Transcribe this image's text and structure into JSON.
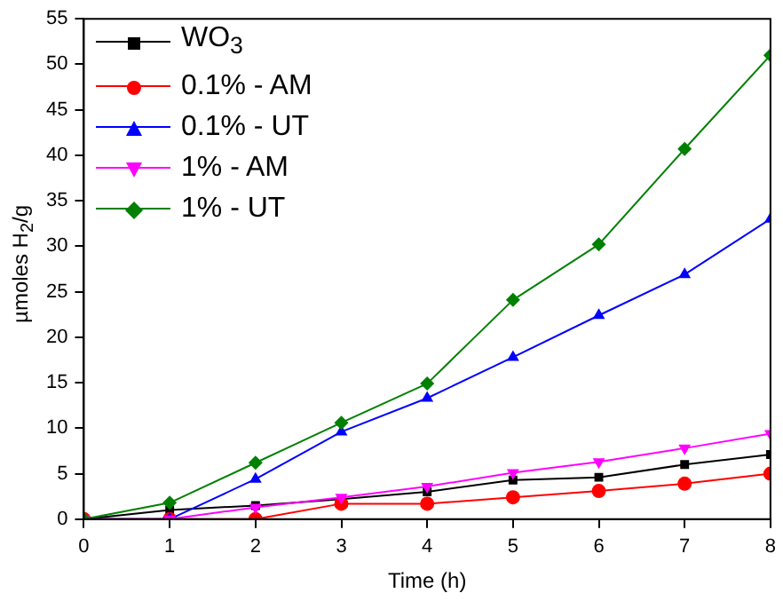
{
  "chart_data": {
    "type": "line",
    "xlabel": "Time (h)",
    "ylabel": "µmoles H$_{2}$/g",
    "x": [
      0,
      1,
      2,
      3,
      4,
      5,
      6,
      7,
      8
    ],
    "xlim": [
      0,
      8
    ],
    "xticks": [
      0,
      1,
      2,
      3,
      4,
      5,
      6,
      7,
      8
    ],
    "ylim": [
      0,
      55
    ],
    "yticks": [
      0,
      5,
      10,
      15,
      20,
      25,
      30,
      35,
      40,
      45,
      50,
      55
    ],
    "grid": false,
    "legend": "top left",
    "line_style": "solid",
    "series": [
      {
        "name": "WO$_{3}$",
        "color": "#000000",
        "marker": "square",
        "values": [
          0,
          1.0,
          1.5,
          2.2,
          3.0,
          4.3,
          4.6,
          6.0,
          7.1
        ]
      },
      {
        "name": "0.1% - AM",
        "color": "#ff0000",
        "marker": "circle",
        "values": [
          0,
          0,
          0,
          1.7,
          1.7,
          2.4,
          3.1,
          3.9,
          5.0
        ]
      },
      {
        "name": "0.1% - UT",
        "color": "#0000ff",
        "marker": "triangle",
        "values": [
          0,
          0,
          4.4,
          9.6,
          13.3,
          17.8,
          22.4,
          26.9,
          33.0
        ]
      },
      {
        "name": "1% - AM",
        "color": "#ff00ff",
        "marker": "triangle-down",
        "values": [
          0,
          0,
          1.3,
          2.4,
          3.6,
          5.1,
          6.3,
          7.8,
          9.4
        ]
      },
      {
        "name": "1% - UT",
        "color": "#008000",
        "marker": "diamond",
        "values": [
          0,
          1.8,
          6.2,
          10.6,
          14.9,
          24.1,
          30.2,
          40.7,
          51.0
        ]
      }
    ]
  }
}
